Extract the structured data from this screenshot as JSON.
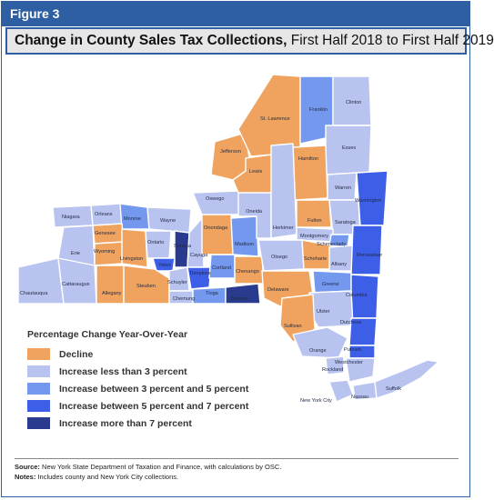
{
  "figure_label": "Figure 3",
  "title_bold": "Change in County Sales Tax Collections,",
  "title_rest": "First Half 2018 to First Half 2019",
  "legend": {
    "title": "Percentage Change Year-Over-Year",
    "items": [
      {
        "key": "decline",
        "label": "Decline",
        "color": "#f0a35e"
      },
      {
        "key": "lt3",
        "label": "Increase less than 3 percent",
        "color": "#b9c3ef"
      },
      {
        "key": "3to5",
        "label": "Increase between 3 percent and 5 percent",
        "color": "#7498ee"
      },
      {
        "key": "5to7",
        "label": "Increase between 5 percent and 7 percent",
        "color": "#3d5fe8"
      },
      {
        "key": "gt7",
        "label": "Increase more than 7 percent",
        "color": "#2a3b8f"
      }
    ]
  },
  "counties": [
    {
      "id": "niagara",
      "name": "Niagara",
      "cat": "lt3"
    },
    {
      "id": "orleans",
      "name": "Orleans",
      "cat": "lt3"
    },
    {
      "id": "monroe",
      "name": "Monroe",
      "cat": "3to5"
    },
    {
      "id": "wayne",
      "name": "Wayne",
      "cat": "lt3"
    },
    {
      "id": "erie",
      "name": "Erie",
      "cat": "lt3"
    },
    {
      "id": "genesee",
      "name": "Genesee",
      "cat": "decline"
    },
    {
      "id": "wyoming",
      "name": "Wyoming",
      "cat": "decline"
    },
    {
      "id": "livingston",
      "name": "Livingston",
      "cat": "decline"
    },
    {
      "id": "ontario",
      "name": "Ontario",
      "cat": "lt3"
    },
    {
      "id": "yates",
      "name": "Yates",
      "cat": "5to7"
    },
    {
      "id": "seneca",
      "name": "Seneca",
      "cat": "gt7"
    },
    {
      "id": "cayuga",
      "name": "Cayuga",
      "cat": "lt3"
    },
    {
      "id": "chautauqua",
      "name": "Chautauqua",
      "cat": "lt3"
    },
    {
      "id": "cattaraugus",
      "name": "Cattaraugus",
      "cat": "lt3"
    },
    {
      "id": "allegany",
      "name": "Allegany",
      "cat": "decline"
    },
    {
      "id": "steuben",
      "name": "Steuben",
      "cat": "decline"
    },
    {
      "id": "schuyler",
      "name": "Schuyler",
      "cat": "lt3"
    },
    {
      "id": "chemung",
      "name": "Chemung",
      "cat": "lt3"
    },
    {
      "id": "tompkins",
      "name": "Tompkins",
      "cat": "5to7"
    },
    {
      "id": "tioga",
      "name": "Tioga",
      "cat": "3to5"
    },
    {
      "id": "broome",
      "name": "Broome",
      "cat": "gt7"
    },
    {
      "id": "cortland",
      "name": "Cortland",
      "cat": "3to5"
    },
    {
      "id": "chenango",
      "name": "Chenango",
      "cat": "decline"
    },
    {
      "id": "onondaga",
      "name": "Onondaga",
      "cat": "decline"
    },
    {
      "id": "oswego",
      "name": "Oswego",
      "cat": "lt3"
    },
    {
      "id": "madison",
      "name": "Madison",
      "cat": "3to5"
    },
    {
      "id": "oneida",
      "name": "Oneida",
      "cat": "lt3"
    },
    {
      "id": "jefferson",
      "name": "Jefferson",
      "cat": "decline"
    },
    {
      "id": "lewis",
      "name": "Lewis",
      "cat": "decline"
    },
    {
      "id": "stlawrence",
      "name": "St. Lawrence",
      "cat": "decline"
    },
    {
      "id": "franklin",
      "name": "Franklin",
      "cat": "3to5"
    },
    {
      "id": "clinton",
      "name": "Clinton",
      "cat": "lt3"
    },
    {
      "id": "essex",
      "name": "Essex",
      "cat": "lt3"
    },
    {
      "id": "hamilton",
      "name": "Hamilton",
      "cat": "decline"
    },
    {
      "id": "herkimer",
      "name": "Herkimer",
      "cat": "lt3"
    },
    {
      "id": "warren",
      "name": "Warren",
      "cat": "lt3"
    },
    {
      "id": "washington",
      "name": "Washington",
      "cat": "5to7"
    },
    {
      "id": "saratoga",
      "name": "Saratoga",
      "cat": "lt3"
    },
    {
      "id": "fulton",
      "name": "Fulton",
      "cat": "decline"
    },
    {
      "id": "montgomery",
      "name": "Montgomery",
      "cat": "lt3"
    },
    {
      "id": "schenectady",
      "name": "Schenectady",
      "cat": "3to5"
    },
    {
      "id": "otsego",
      "name": "Otsego",
      "cat": "lt3"
    },
    {
      "id": "schoharie",
      "name": "Schoharie",
      "cat": "decline"
    },
    {
      "id": "albany",
      "name": "Albany",
      "cat": "lt3"
    },
    {
      "id": "rensselaer",
      "name": "Rensselaer",
      "cat": "5to7"
    },
    {
      "id": "delaware",
      "name": "Delaware",
      "cat": "decline"
    },
    {
      "id": "greene",
      "name": "Greene",
      "cat": "3to5"
    },
    {
      "id": "columbia",
      "name": "Columbia",
      "cat": "5to7"
    },
    {
      "id": "ulster",
      "name": "Ulster",
      "cat": "lt3"
    },
    {
      "id": "dutchess",
      "name": "Dutchess",
      "cat": "5to7"
    },
    {
      "id": "sullivan",
      "name": "Sullivan",
      "cat": "decline"
    },
    {
      "id": "orange",
      "name": "Orange",
      "cat": "lt3"
    },
    {
      "id": "putnam",
      "name": "Putnam",
      "cat": "5to7"
    },
    {
      "id": "rockland",
      "name": "Rockland",
      "cat": "lt3"
    },
    {
      "id": "westchester",
      "name": "Westchester",
      "cat": "lt3"
    },
    {
      "id": "nyc",
      "name": "New York City",
      "cat": "lt3"
    },
    {
      "id": "nassau",
      "name": "Nassau",
      "cat": "lt3"
    },
    {
      "id": "suffolk",
      "name": "Suffolk",
      "cat": "lt3"
    }
  ],
  "source_label": "Source:",
  "source_text": "New York State Department of Taxation and Finance, with calculations by OSC.",
  "notes_label": "Notes:",
  "notes_text": "Includes county and New York City collections."
}
